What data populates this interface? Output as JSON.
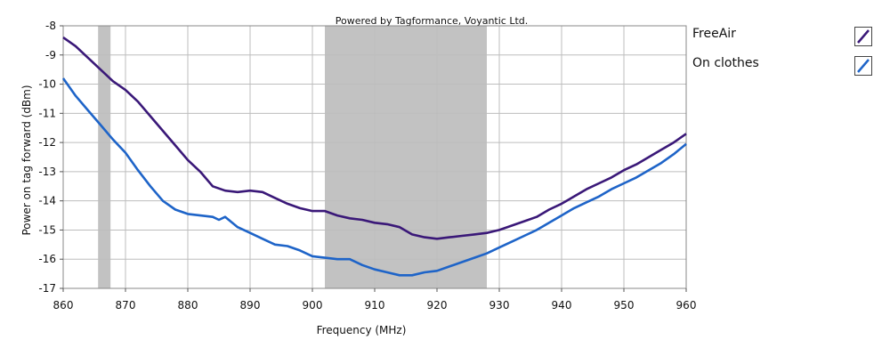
{
  "credit": "Powered by Tagformance, Voyantic Ltd.",
  "chart_data": {
    "type": "line",
    "xlabel": "Frequency (MHz)",
    "ylabel": "Power on tag forward (dBm)",
    "xlim": [
      860,
      960
    ],
    "ylim": [
      -17,
      -8
    ],
    "xticks": [
      "860",
      "870",
      "880",
      "890",
      "900",
      "910",
      "920",
      "930",
      "940",
      "950",
      "960"
    ],
    "yticks": [
      "-8",
      "-9",
      "-10",
      "-11",
      "-12",
      "-13",
      "-14",
      "-15",
      "-16",
      "-17"
    ],
    "grid": true,
    "legend_position": "right",
    "shaded_bands": [
      [
        865.6,
        867.6
      ],
      [
        902,
        928
      ]
    ],
    "series": [
      {
        "name": "FreeAir",
        "color": "#3a1878",
        "x": [
          860,
          862,
          864,
          866,
          868,
          870,
          872,
          874,
          876,
          878,
          880,
          882,
          884,
          886,
          888,
          890,
          892,
          894,
          896,
          898,
          900,
          902,
          904,
          906,
          908,
          910,
          912,
          914,
          916,
          918,
          920,
          922,
          924,
          926,
          928,
          930,
          932,
          934,
          936,
          938,
          940,
          942,
          944,
          946,
          948,
          950,
          952,
          954,
          956,
          958,
          960
        ],
        "y": [
          -8.4,
          -8.7,
          -9.1,
          -9.5,
          -9.9,
          -10.2,
          -10.6,
          -11.1,
          -11.6,
          -12.1,
          -12.6,
          -13.0,
          -13.5,
          -13.65,
          -13.7,
          -13.65,
          -13.7,
          -13.9,
          -14.1,
          -14.25,
          -14.35,
          -14.35,
          -14.5,
          -14.6,
          -14.65,
          -14.75,
          -14.8,
          -14.9,
          -15.15,
          -15.25,
          -15.3,
          -15.25,
          -15.2,
          -15.15,
          -15.1,
          -15.0,
          -14.85,
          -14.7,
          -14.55,
          -14.3,
          -14.1,
          -13.85,
          -13.6,
          -13.4,
          -13.2,
          -12.95,
          -12.75,
          -12.5,
          -12.25,
          -12.0,
          -11.7
        ]
      },
      {
        "name": "On clothes",
        "color": "#1e64c8",
        "x": [
          860,
          862,
          864,
          866,
          868,
          870,
          872,
          874,
          876,
          878,
          880,
          882,
          884,
          885,
          886,
          888,
          890,
          892,
          894,
          896,
          898,
          900,
          902,
          904,
          906,
          908,
          910,
          912,
          914,
          916,
          918,
          920,
          922,
          924,
          926,
          928,
          930,
          932,
          934,
          936,
          938,
          940,
          942,
          944,
          946,
          948,
          950,
          952,
          954,
          956,
          958,
          960
        ],
        "y": [
          -9.8,
          -10.4,
          -10.9,
          -11.4,
          -11.9,
          -12.35,
          -12.95,
          -13.5,
          -14.0,
          -14.3,
          -14.45,
          -14.5,
          -14.55,
          -14.65,
          -14.55,
          -14.9,
          -15.1,
          -15.3,
          -15.5,
          -15.55,
          -15.7,
          -15.9,
          -15.95,
          -16.0,
          -16.0,
          -16.2,
          -16.35,
          -16.45,
          -16.55,
          -16.55,
          -16.45,
          -16.4,
          -16.25,
          -16.1,
          -15.95,
          -15.8,
          -15.6,
          -15.4,
          -15.2,
          -15.0,
          -14.75,
          -14.5,
          -14.25,
          -14.05,
          -13.85,
          -13.6,
          -13.4,
          -13.2,
          -12.95,
          -12.7,
          -12.4,
          -12.05
        ]
      }
    ]
  }
}
